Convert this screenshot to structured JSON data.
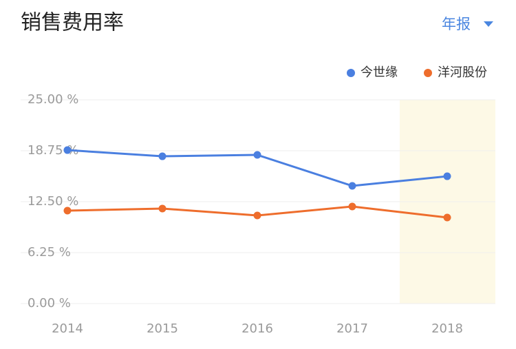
{
  "chart_data": {
    "type": "line",
    "title": "销售费用率",
    "period_selector": "年报",
    "categories": [
      "2014",
      "2015",
      "2016",
      "2017",
      "2018"
    ],
    "series": [
      {
        "name": "今世缘",
        "color": "#4a7fe0",
        "values": [
          18.83,
          18.07,
          18.24,
          14.44,
          15.62
        ]
      },
      {
        "name": "洋河股份",
        "color": "#ee6d2c",
        "values": [
          11.4,
          11.66,
          10.81,
          11.91,
          10.56
        ]
      }
    ],
    "ylim": [
      0,
      25
    ],
    "yticks": [
      {
        "value": 0,
        "label": "0.00 %"
      },
      {
        "value": 6.25,
        "label": "6.25 %"
      },
      {
        "value": 12.5,
        "label": "12.50 %"
      },
      {
        "value": 18.75,
        "label": "18.75 %"
      },
      {
        "value": 25,
        "label": "25.00 %"
      }
    ],
    "grid": true
  }
}
